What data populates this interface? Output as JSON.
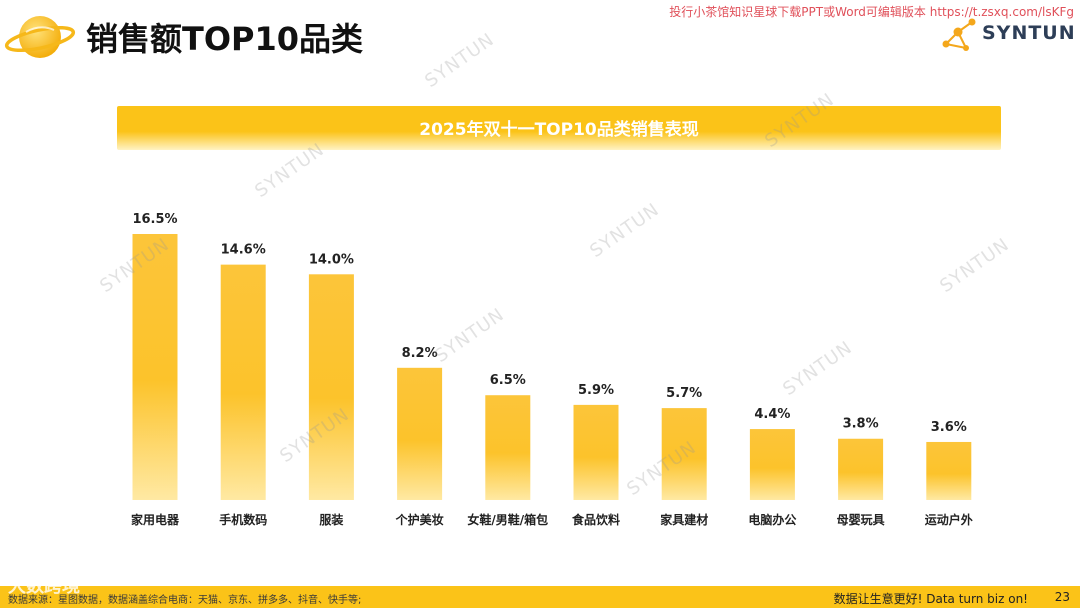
{
  "header": {
    "title": "销售额TOP10品类",
    "top_note": "投行小茶馆知识星球下载PPT或Word可编辑版本 https://t.zsxq.com/lsKFg",
    "brand_name": "SYNTUN"
  },
  "chart_data": {
    "type": "bar",
    "title": "2025年双十一TOP10品类销售表现",
    "categories": [
      "家用电器",
      "手机数码",
      "服装",
      "个护美妆",
      "女鞋/男鞋/箱包",
      "食品饮料",
      "家具建材",
      "电脑办公",
      "母婴玩具",
      "运动户外"
    ],
    "values": [
      16.5,
      14.6,
      14.0,
      8.2,
      6.5,
      5.9,
      5.7,
      4.4,
      3.8,
      3.6
    ],
    "value_labels": [
      "16.5%",
      "14.6%",
      "14.0%",
      "8.2%",
      "6.5%",
      "5.9%",
      "5.7%",
      "4.4%",
      "3.8%",
      "3.6%"
    ],
    "xlabel": "",
    "ylabel": "",
    "ylim": [
      0,
      16.5
    ],
    "grid": false,
    "bar_color": "#fbc318"
  },
  "watermark": {
    "text": "SYNTUN",
    "bottom_overlay": "大数跨境"
  },
  "footer": {
    "source": "数据来源：星图数据，数据涵盖综合电商：天猫、京东、拼多多、抖音、快手等;",
    "slogan": "数据让生意更好! Data turn biz on!",
    "page_number": "23"
  },
  "colors": {
    "accent": "#fbc318",
    "title_text": "#111111",
    "brand": "#2d3e57",
    "note": "#e0505a"
  }
}
